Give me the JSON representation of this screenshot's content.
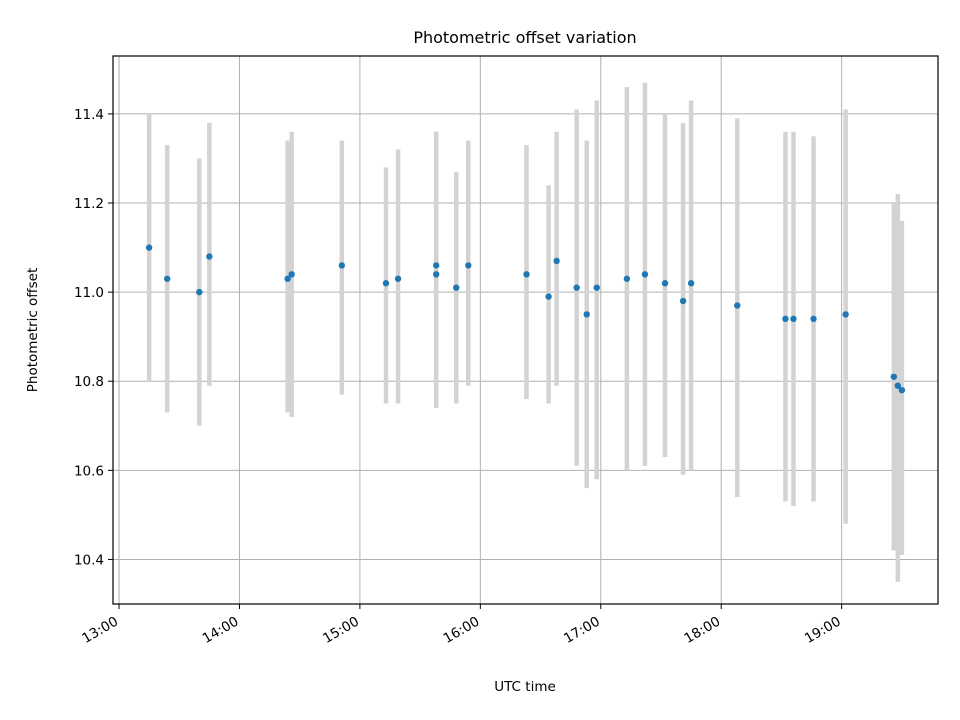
{
  "chart_data": {
    "type": "scatter",
    "title": "Photometric offset variation",
    "xlabel": "UTC time",
    "ylabel": "Photometric offset",
    "xlim": [
      "12:57",
      "19:48"
    ],
    "ylim": [
      10.3,
      11.53
    ],
    "x_ticks": [
      "13:00",
      "14:00",
      "15:00",
      "16:00",
      "17:00",
      "18:00",
      "19:00"
    ],
    "y_ticks": [
      "10.4",
      "10.6",
      "10.8",
      "11.0",
      "11.2",
      "11.4"
    ],
    "grid": true,
    "legend": "none",
    "colors": {
      "point": "#1f77b4",
      "errorbar": "#d3d3d3",
      "grid": "#b0b0b0"
    },
    "points": [
      {
        "x": "13:15",
        "y": 11.1,
        "ylow": 10.8,
        "yhigh": 11.4
      },
      {
        "x": "13:24",
        "y": 11.03,
        "ylow": 10.73,
        "yhigh": 11.33
      },
      {
        "x": "13:40",
        "y": 11.0,
        "ylow": 10.7,
        "yhigh": 11.3
      },
      {
        "x": "13:45",
        "y": 11.08,
        "ylow": 10.79,
        "yhigh": 11.38
      },
      {
        "x": "14:24",
        "y": 11.03,
        "ylow": 10.73,
        "yhigh": 11.34
      },
      {
        "x": "14:26",
        "y": 11.04,
        "ylow": 10.72,
        "yhigh": 11.36
      },
      {
        "x": "14:51",
        "y": 11.06,
        "ylow": 10.77,
        "yhigh": 11.34
      },
      {
        "x": "15:13",
        "y": 11.02,
        "ylow": 10.75,
        "yhigh": 11.28
      },
      {
        "x": "15:19",
        "y": 11.03,
        "ylow": 10.75,
        "yhigh": 11.32
      },
      {
        "x": "15:38",
        "y": 11.04,
        "ylow": 10.74,
        "yhigh": 11.36
      },
      {
        "x": "15:38",
        "y": 11.06,
        "ylow": 10.75,
        "yhigh": 11.36
      },
      {
        "x": "15:48",
        "y": 11.01,
        "ylow": 10.75,
        "yhigh": 11.27
      },
      {
        "x": "15:54",
        "y": 11.06,
        "ylow": 10.79,
        "yhigh": 11.34
      },
      {
        "x": "16:23",
        "y": 11.04,
        "ylow": 10.76,
        "yhigh": 11.33
      },
      {
        "x": "16:34",
        "y": 10.99,
        "ylow": 10.75,
        "yhigh": 11.24
      },
      {
        "x": "16:38",
        "y": 11.07,
        "ylow": 10.79,
        "yhigh": 11.36
      },
      {
        "x": "16:48",
        "y": 11.01,
        "ylow": 10.61,
        "yhigh": 11.41
      },
      {
        "x": "16:53",
        "y": 10.95,
        "ylow": 10.56,
        "yhigh": 11.34
      },
      {
        "x": "16:58",
        "y": 11.01,
        "ylow": 10.58,
        "yhigh": 11.43
      },
      {
        "x": "17:13",
        "y": 11.03,
        "ylow": 10.6,
        "yhigh": 11.46
      },
      {
        "x": "17:22",
        "y": 11.04,
        "ylow": 10.61,
        "yhigh": 11.47
      },
      {
        "x": "17:32",
        "y": 11.02,
        "ylow": 10.63,
        "yhigh": 11.4
      },
      {
        "x": "17:41",
        "y": 10.98,
        "ylow": 10.59,
        "yhigh": 11.38
      },
      {
        "x": "17:45",
        "y": 11.02,
        "ylow": 10.6,
        "yhigh": 11.43
      },
      {
        "x": "18:08",
        "y": 10.97,
        "ylow": 10.54,
        "yhigh": 11.39
      },
      {
        "x": "18:32",
        "y": 10.94,
        "ylow": 10.53,
        "yhigh": 11.36
      },
      {
        "x": "18:36",
        "y": 10.94,
        "ylow": 10.52,
        "yhigh": 11.36
      },
      {
        "x": "18:46",
        "y": 10.94,
        "ylow": 10.53,
        "yhigh": 11.35
      },
      {
        "x": "19:02",
        "y": 10.95,
        "ylow": 10.48,
        "yhigh": 11.41
      },
      {
        "x": "19:26",
        "y": 10.81,
        "ylow": 10.42,
        "yhigh": 11.2
      },
      {
        "x": "19:28",
        "y": 10.79,
        "ylow": 10.35,
        "yhigh": 11.22
      },
      {
        "x": "19:30",
        "y": 10.78,
        "ylow": 10.41,
        "yhigh": 11.16
      }
    ]
  }
}
